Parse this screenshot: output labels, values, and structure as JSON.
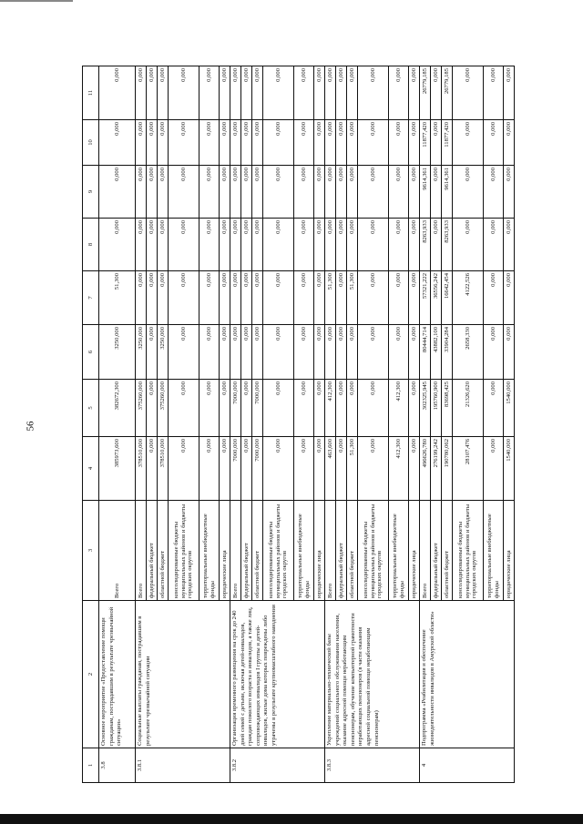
{
  "page_number": "56",
  "column_numbers": [
    "1",
    "2",
    "3",
    "4",
    "5",
    "6",
    "7",
    "8",
    "9",
    "10",
    "11"
  ],
  "source_labels": {
    "total": "Всего",
    "federal": "федеральный бюджет",
    "regional": "областной бюджет",
    "municipal": "консолидированные бюджеты муниципальных районов и бюджеты городских округов",
    "offbudget": "территориальные внебюджетные фонды",
    "legal": "юридические лица"
  },
  "groups": [
    {
      "code": "3.8",
      "title": "Основное мероприятие «Предоставление помощи гражданам, пострадавшим в результате чрезвычайной ситуации»",
      "rows": [
        {
          "label": "Всего",
          "values": [
            "385973,600",
            "382672,300",
            "3250,000",
            "51,300",
            "0,000",
            "0,000",
            "0,000",
            "0,000"
          ]
        }
      ]
    },
    {
      "code": "3.8.1",
      "title": "Социальные выплаты гражданам, пострадавшим в результате чрезвычайной ситуации",
      "rows": [
        {
          "label": "Всего",
          "values": [
            "378510,000",
            "375260,000",
            "3250,000",
            "0,000",
            "0,000",
            "0,000",
            "0,000",
            "0,000"
          ]
        },
        {
          "label": "федеральный бюджет",
          "values": [
            "0,000",
            "0,000",
            "0,000",
            "0,000",
            "0,000",
            "0,000",
            "0,000",
            "0,000"
          ]
        },
        {
          "label": "областной бюджет",
          "values": [
            "378510,000",
            "375260,000",
            "3250,000",
            "0,000",
            "0,000",
            "0,000",
            "0,000",
            "0,000"
          ]
        },
        {
          "label": "консолидированные бюджеты муниципальных районов и бюджеты городских округов",
          "values": [
            "0,000",
            "0,000",
            "0,000",
            "0,000",
            "0,000",
            "0,000",
            "0,000",
            "0,000"
          ]
        },
        {
          "label": "территориальные внебюджетные фонды",
          "values": [
            "0,000",
            "0,000",
            "0,000",
            "0,000",
            "0,000",
            "0,000",
            "0,000",
            "0,000"
          ]
        },
        {
          "label": "юридические лица",
          "values": [
            "0,000",
            "0,000",
            "0,000",
            "0,000",
            "0,000",
            "0,000",
            "0,000",
            "0,000"
          ]
        }
      ]
    },
    {
      "code": "3.8.2",
      "title": "Организация временного размещения на срок до 240 дней семей с детьми, включая детей-инвалидов, граждан пожилого возраста и инвалидов, а также лиц, сопровождающих инвалидов I группы и детей-инвалидов, жилые дома которых повреждены либо утрачены в результате крупномасштабного наводнения",
      "rows": [
        {
          "label": "Всего",
          "values": [
            "7000,000",
            "7000,000",
            "0,000",
            "0,000",
            "0,000",
            "0,000",
            "0,000",
            "0,000"
          ]
        },
        {
          "label": "федеральный бюджет",
          "values": [
            "0,000",
            "0,000",
            "0,000",
            "0,000",
            "0,000",
            "0,000",
            "0,000",
            "0,000"
          ]
        },
        {
          "label": "областной бюджет",
          "values": [
            "7000,000",
            "7000,000",
            "0,000",
            "0,000",
            "0,000",
            "0,000",
            "0,000",
            "0,000"
          ]
        },
        {
          "label": "консолидированные бюджеты муниципальных районов и бюджеты городских округов",
          "values": [
            "0,000",
            "0,000",
            "0,000",
            "0,000",
            "0,000",
            "0,000",
            "0,000",
            "0,000"
          ]
        },
        {
          "label": "территориальные внебюджетные фонды",
          "values": [
            "0,000",
            "0,000",
            "0,000",
            "0,000",
            "0,000",
            "0,000",
            "0,000",
            "0,000"
          ]
        },
        {
          "label": "юридические лица",
          "values": [
            "0,000",
            "0,000",
            "0,000",
            "0,000",
            "0,000",
            "0,000",
            "0,000",
            "0,000"
          ]
        }
      ]
    },
    {
      "code": "3.8.3",
      "title": "Укрепление материально-технической базы учреждений социального обслуживания населения, оказание адресной помощи неработающим пенсионерам, обучение компьютерной грамотности неработающих пенсионеров (в части оказания адресной социальной помощи неработающим пенсионерам)",
      "rows": [
        {
          "label": "Всего",
          "values": [
            "463,600",
            "412,300",
            "0,000",
            "51,300",
            "0,000",
            "0,000",
            "0,000",
            "0,000"
          ]
        },
        {
          "label": "федеральный бюджет",
          "values": [
            "0,000",
            "0,000",
            "0,000",
            "0,000",
            "0,000",
            "0,000",
            "0,000",
            "0,000"
          ]
        },
        {
          "label": "областной бюджет",
          "values": [
            "51,300",
            "0,000",
            "0,000",
            "51,300",
            "0,000",
            "0,000",
            "0,000",
            "0,000"
          ]
        },
        {
          "label": "консолидированные бюджеты муниципальных районов и бюджеты городских округов",
          "values": [
            "0,000",
            "0,000",
            "0,000",
            "0,000",
            "0,000",
            "0,000",
            "0,000",
            "0,000"
          ]
        },
        {
          "label": "территориальные внебюджетные фонды",
          "values": [
            "412,300",
            "412,300",
            "0,000",
            "0,000",
            "0,000",
            "0,000",
            "0,000",
            "0,000"
          ]
        },
        {
          "label": "юридические лица",
          "values": [
            "0,000",
            "0,000",
            "0,000",
            "0,000",
            "0,000",
            "0,000",
            "0,000",
            "0,000"
          ]
        }
      ]
    },
    {
      "code": "4",
      "title": "Подпрограмма «Реабилитация и обеспечение жизнедеятельности инвалидов в Амурской области»",
      "rows": [
        {
          "label": "Всего",
          "values": [
            "496626,780",
            "302325,945",
            "80444,714",
            "57321,222",
            "8263,933",
            "9614,361",
            "11877,420",
            "26779,185"
          ]
        },
        {
          "label": "федеральный бюджет",
          "values": [
            "276199,242",
            "195760,900",
            "43882,100",
            "36556,242",
            "0,000",
            "0,000",
            "0,000",
            "0,000"
          ]
        },
        {
          "label": "областной бюджет",
          "values": [
            "190780,062",
            "83698,425",
            "33904,284",
            "16642,454",
            "8263,933",
            "9614,361",
            "11877,420",
            "26779,185"
          ]
        },
        {
          "label": "консолидированные бюджеты муниципальных районов и бюджеты городских округов",
          "values": [
            "28107,476",
            "21326,620",
            "2658,330",
            "4122,526",
            "0,000",
            "0,000",
            "0,000",
            "0,000"
          ]
        },
        {
          "label": "территориальные внебюджетные фонды",
          "values": [
            "0,000",
            "0,000",
            "0,000",
            "0,000",
            "0,000",
            "0,000",
            "0,000",
            "0,000"
          ]
        },
        {
          "label": "юридические лица",
          "values": [
            "1540,000",
            "1540,000",
            "0,000",
            "0,000",
            "0,000",
            "0,000",
            "0,000",
            "0,000"
          ]
        }
      ]
    }
  ]
}
